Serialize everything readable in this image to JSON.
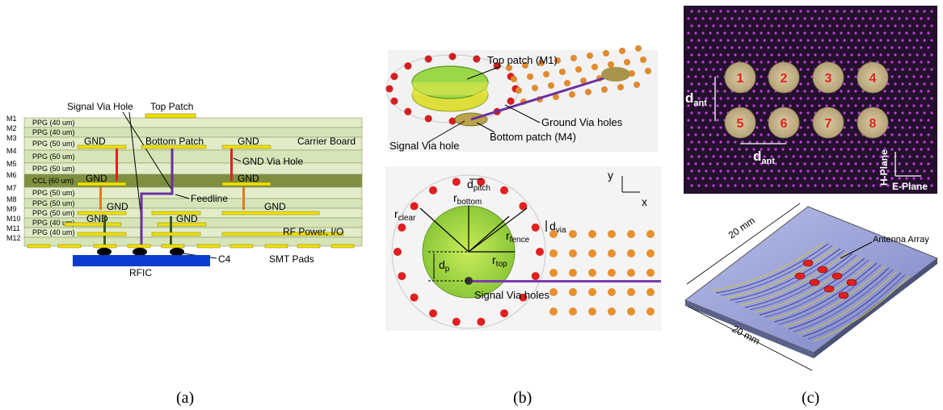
{
  "panel_a": {
    "layers": [
      {
        "m": "M1",
        "ppg": "PPG (40 um)"
      },
      {
        "m": "M2",
        "ppg": "PPG (40 um)"
      },
      {
        "m": "M3",
        "ppg": "PPG (50 um)"
      },
      {
        "m": "M4",
        "ppg": "PPG (50 um)"
      },
      {
        "m": "M5",
        "ppg": "PPG (50 um)"
      },
      {
        "m": "M6",
        "ppg": "CCL (60 um)"
      },
      {
        "m": "M7",
        "ppg": "PPG (50 um)"
      },
      {
        "m": "M8",
        "ppg": "PPG (50 um)"
      },
      {
        "m": "M9",
        "ppg": "PPG (50 um)"
      },
      {
        "m": "M10",
        "ppg": "PPG (40 um)"
      },
      {
        "m": "M11",
        "ppg": "PPG (40 um)"
      },
      {
        "m": "M12",
        "ppg": ""
      }
    ],
    "labels": {
      "signal_via_hole": "Signal Via Hole",
      "top_patch": "Top Patch",
      "gnd": "GND",
      "bottom_patch": "Bottom Patch",
      "carrier_board": "Carrier Board",
      "gnd_via_hole": "GND Via Hole",
      "feedline": "Feedline",
      "rf_power": "RF Power, I/O",
      "c4": "C4",
      "smt_pads": "SMT Pads",
      "rfic": "RFIC"
    },
    "caption": "(a)"
  },
  "panel_b": {
    "top_labels": {
      "top_patch": "Top patch (M1)",
      "ground_via": "Ground Via holes",
      "signal_via": "Signal Via hole",
      "bottom_patch": "Bottom patch (M4)"
    },
    "bottom_labels": {
      "d_pitch": "d",
      "d_pitch_sub": "pitch",
      "r_bottom": "r",
      "r_bottom_sub": "bottom",
      "r_clear": "r",
      "r_clear_sub": "clear",
      "r_fence": "r",
      "r_fence_sub": "fence",
      "r_top": "r",
      "r_top_sub": "top",
      "d_via": "d",
      "d_via_sub": "via",
      "d_p": "d",
      "d_p_sub": "p",
      "signal_via_holes": "Signal Via holes",
      "axis_y": "y",
      "axis_x": "x"
    },
    "caption": "(b)"
  },
  "panel_c": {
    "elements": [
      "1",
      "2",
      "3",
      "4",
      "5",
      "6",
      "7",
      "8"
    ],
    "d_ant": "d",
    "d_ant_sub": "ant",
    "h_plane": "H-Plane",
    "e_plane": "E-Plane",
    "dim1": "20 mm",
    "dim2": "20 mm",
    "antenna_array": "Antenna Array",
    "caption": "(c)"
  },
  "colors": {
    "board_light": "#d6e5b8",
    "board_dark": "#7f8f3f",
    "metal": "#f0e000",
    "via_red": "#e02020",
    "via_orange": "#e07a20",
    "feed_purple": "#6a2ea0",
    "rfic": "#0a3ccf",
    "patch_green": "#a8d84a",
    "array_bg": "#24102e"
  }
}
